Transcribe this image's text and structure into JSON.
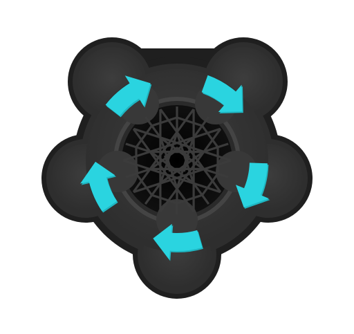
{
  "puzzle": {
    "lobe_count": 5,
    "arrow_count": 5,
    "rotation_direction": "clockwise",
    "colors": {
      "background": "#ffffff",
      "body_outer": "#232323",
      "body_mid": "#2f2f2f",
      "body_face": "#383838",
      "socket_rim": "#474747",
      "socket_inner": "#0c0c0c",
      "lattice": "#3b3b3b",
      "arrow": "#2ad4e0",
      "arrow_shade": "#1fb6c2"
    },
    "icons": {
      "arrow": "curved-arrow-icon",
      "center": "star-lattice-pattern"
    }
  }
}
